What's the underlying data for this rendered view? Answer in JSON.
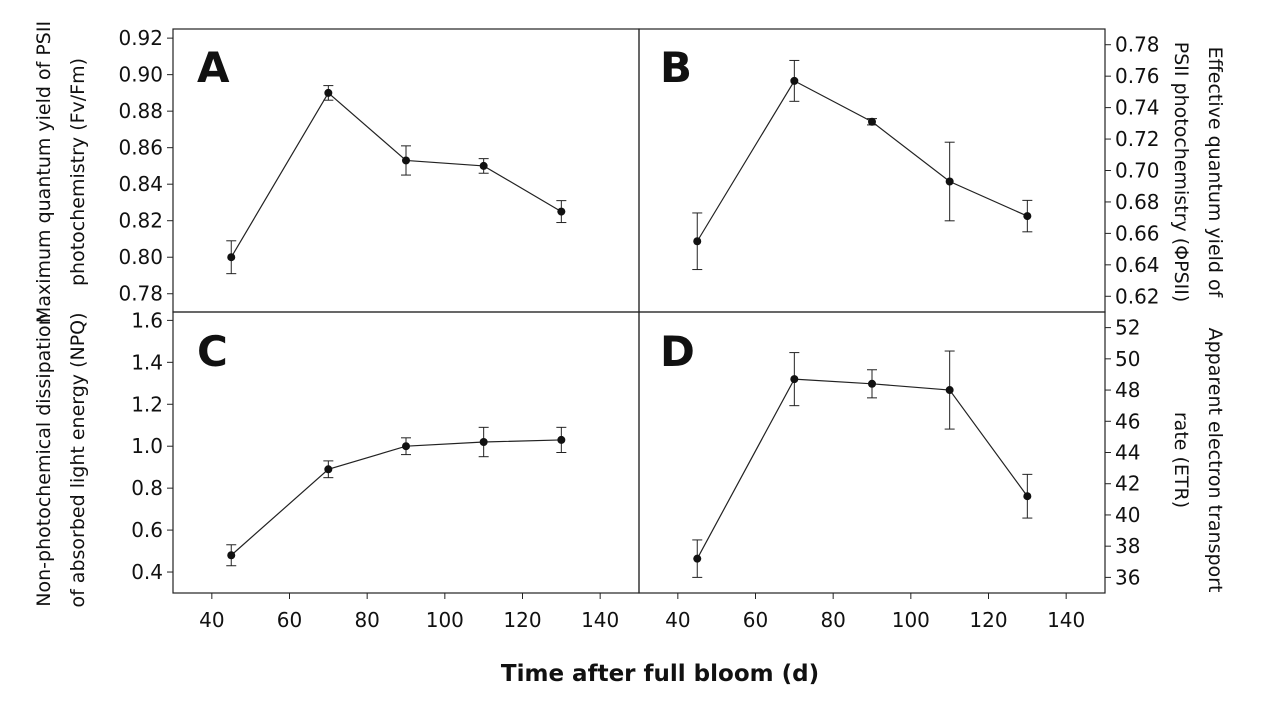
{
  "figure": {
    "xlabel": "Time after full bloom (d)",
    "x_ticks": [
      40,
      60,
      80,
      100,
      120,
      140
    ],
    "xlim": [
      30,
      150
    ]
  },
  "chart_data": [
    {
      "type": "line",
      "panel": "A",
      "ylabel_lines": [
        "Maximum quantum yield of PSII",
        "photochemistry (Fv/Fm)"
      ],
      "y_axis_side": "left",
      "ylim": [
        0.77,
        0.925
      ],
      "y_ticks": [
        "0.78",
        "0.80",
        "0.82",
        "0.84",
        "0.86",
        "0.88",
        "0.90",
        "0.92"
      ],
      "x": [
        45,
        70,
        90,
        110,
        130
      ],
      "y": [
        0.8,
        0.89,
        0.853,
        0.85,
        0.825
      ],
      "err": [
        0.009,
        0.004,
        0.008,
        0.004,
        0.006
      ]
    },
    {
      "type": "line",
      "panel": "B",
      "ylabel_lines": [
        "Effective quantum yield of",
        "PSII photochemistry (ΦPSII)"
      ],
      "y_axis_side": "right",
      "ylim": [
        0.61,
        0.79
      ],
      "y_ticks": [
        "0.62",
        "0.64",
        "0.66",
        "0.68",
        "0.70",
        "0.72",
        "0.74",
        "0.76",
        "0.78"
      ],
      "x": [
        45,
        70,
        90,
        110,
        130
      ],
      "y": [
        0.655,
        0.757,
        0.731,
        0.693,
        0.671
      ],
      "err": [
        0.018,
        0.013,
        0.002,
        0.025,
        0.01
      ]
    },
    {
      "type": "line",
      "panel": "C",
      "ylabel_lines": [
        "Non-photochemical dissipation",
        "of absorbed light energy (NPQ)"
      ],
      "y_axis_side": "left",
      "ylim": [
        0.3,
        1.64
      ],
      "y_ticks": [
        "0.4",
        "0.6",
        "0.8",
        "1.0",
        "1.2",
        "1.4",
        "1.6"
      ],
      "x": [
        45,
        70,
        90,
        110,
        130
      ],
      "y": [
        0.48,
        0.89,
        1.0,
        1.02,
        1.03
      ],
      "err": [
        0.05,
        0.04,
        0.04,
        0.07,
        0.06
      ]
    },
    {
      "type": "line",
      "panel": "D",
      "ylabel_lines": [
        "Apparent electron transport",
        "rate (ETR)"
      ],
      "y_axis_side": "right",
      "ylim": [
        35,
        53
      ],
      "y_ticks": [
        "36",
        "38",
        "40",
        "42",
        "44",
        "46",
        "48",
        "50",
        "52"
      ],
      "x": [
        45,
        70,
        90,
        110,
        130
      ],
      "y": [
        37.2,
        48.7,
        48.4,
        48.0,
        41.2
      ],
      "err": [
        1.2,
        1.7,
        0.9,
        2.5,
        1.4
      ]
    }
  ]
}
